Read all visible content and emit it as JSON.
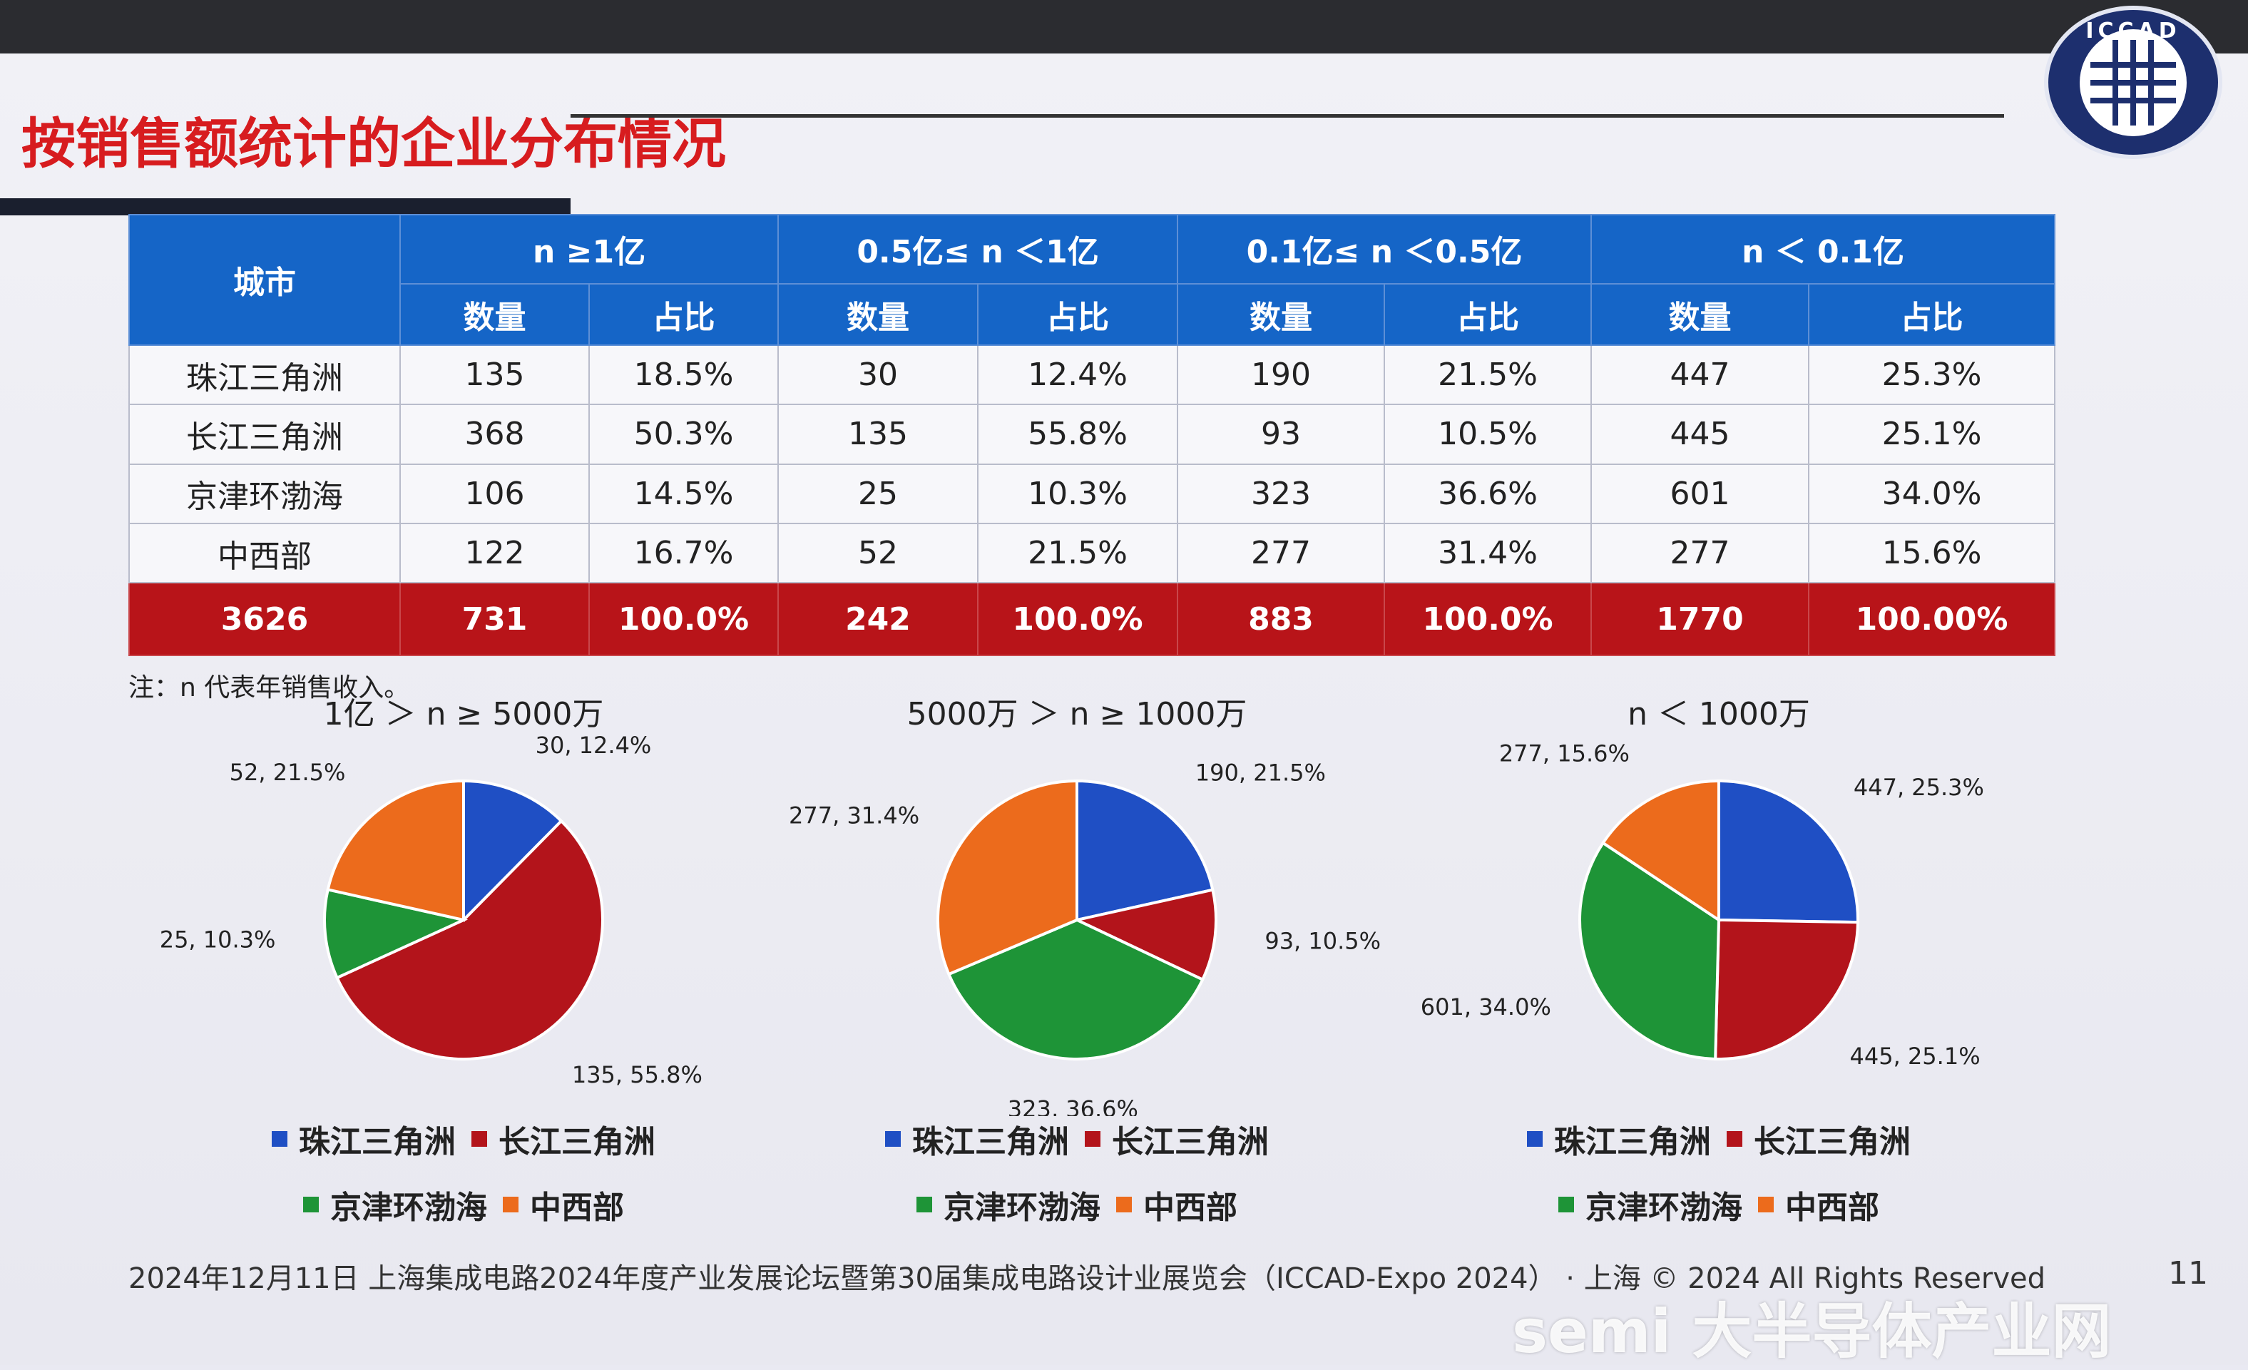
{
  "slide": {
    "title": "按销售额统计的企业分布情况",
    "note": "注：n 代表年销售收入。",
    "footer": "2024年12月11日 上海集成电路2024年度产业发展论坛暨第30届集成电路设计业展览会（ICCAD-Expo 2024） · 上海 © 2024 All Rights Reserved",
    "page_number": "11",
    "logo_text": "ICCAD",
    "watermark": "semi 大半导体产业网"
  },
  "colors": {
    "blue": "#1f4fc4",
    "red": "#b3141b",
    "green": "#1e9437",
    "orange": "#ec6b1c",
    "header_blue": "#1565c7",
    "total_red": "#b81419",
    "title_red": "#d71c1f"
  },
  "table": {
    "city_header": "城市",
    "groups": [
      "n ≥1亿",
      "0.5亿≤ n ＜1亿",
      "0.1亿≤ n ＜0.5亿",
      "n ＜ 0.1亿"
    ],
    "sub_headers": [
      "数量",
      "占比"
    ],
    "rows": [
      {
        "city": "珠江三角洲",
        "cells": [
          "135",
          "18.5%",
          "30",
          "12.4%",
          "190",
          "21.5%",
          "447",
          "25.3%"
        ]
      },
      {
        "city": "长江三角洲",
        "cells": [
          "368",
          "50.3%",
          "135",
          "55.8%",
          "93",
          "10.5%",
          "445",
          "25.1%"
        ]
      },
      {
        "city": "京津环渤海",
        "cells": [
          "106",
          "14.5%",
          "25",
          "10.3%",
          "323",
          "36.6%",
          "601",
          "34.0%"
        ]
      },
      {
        "city": "中西部",
        "cells": [
          "122",
          "16.7%",
          "52",
          "21.5%",
          "277",
          "31.4%",
          "277",
          "15.6%"
        ]
      }
    ],
    "total": {
      "city": "3626",
      "cells": [
        "731",
        "100.0%",
        "242",
        "100.0%",
        "883",
        "100.0%",
        "1770",
        "100.00%"
      ]
    }
  },
  "legend": [
    "珠江三角洲",
    "长江三角洲",
    "京津环渤海",
    "中西部"
  ],
  "chart_data": [
    {
      "type": "pie",
      "title": "1亿 ＞ n ≥ 5000万",
      "categories": [
        "珠江三角洲",
        "长江三角洲",
        "京津环渤海",
        "中西部"
      ],
      "values": [
        30,
        135,
        25,
        52
      ],
      "percents": [
        "12.4%",
        "55.8%",
        "10.3%",
        "21.5%"
      ],
      "labels": [
        "30, 12.4%",
        "135, 55.8%",
        "25, 10.3%",
        "52, 21.5%"
      ],
      "colors": [
        "#1f4fc4",
        "#b3141b",
        "#1e9437",
        "#ec6b1c"
      ],
      "legend": "bottom"
    },
    {
      "type": "pie",
      "title": "5000万 ＞ n ≥ 1000万",
      "categories": [
        "珠江三角洲",
        "长江三角洲",
        "京津环渤海",
        "中西部"
      ],
      "values": [
        190,
        93,
        323,
        277
      ],
      "percents": [
        "21.5%",
        "10.5%",
        "36.6%",
        "31.4%"
      ],
      "labels": [
        "190, 21.5%",
        "93, 10.5%",
        "323, 36.6%",
        "277, 31.4%"
      ],
      "colors": [
        "#1f4fc4",
        "#b3141b",
        "#1e9437",
        "#ec6b1c"
      ],
      "legend": "bottom"
    },
    {
      "type": "pie",
      "title": "n ＜ 1000万",
      "categories": [
        "珠江三角洲",
        "长江三角洲",
        "京津环渤海",
        "中西部"
      ],
      "values": [
        447,
        445,
        601,
        277
      ],
      "percents": [
        "25.3%",
        "25.1%",
        "34.0%",
        "15.6%"
      ],
      "labels": [
        "447, 25.3%",
        "445, 25.1%",
        "601, 34.0%",
        "277, 15.6%"
      ],
      "colors": [
        "#1f4fc4",
        "#b3141b",
        "#1e9437",
        "#ec6b1c"
      ],
      "legend": "bottom"
    }
  ]
}
